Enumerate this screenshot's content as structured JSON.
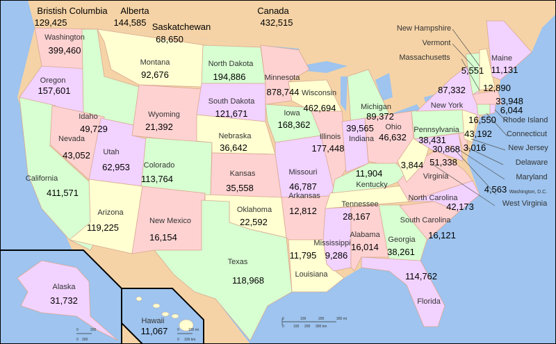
{
  "colors": {
    "ocean": "#9ec4ef",
    "foreign_land": "#f5d3a6",
    "pink": "#ffd2d2",
    "yellow": "#ffffd2",
    "green": "#d8ffd2",
    "purple": "#f2d2ff",
    "lakes": "#9ec4ef"
  },
  "canada": [
    {
      "name": "Bristish Columbia",
      "value": "129,425"
    },
    {
      "name": "Alberta",
      "value": "144,585"
    },
    {
      "name": "Saskatchewan",
      "value": "68,650"
    },
    {
      "name": "Canada",
      "value": "432,515"
    }
  ],
  "states": [
    {
      "name": "Washington",
      "value": "399,460",
      "color": "pink"
    },
    {
      "name": "Oregon",
      "value": "157,601",
      "color": "purple"
    },
    {
      "name": "California",
      "value": "411,571",
      "color": "green"
    },
    {
      "name": "Idaho",
      "value": "49,729",
      "color": "green"
    },
    {
      "name": "Montana",
      "value": "92,676",
      "color": "yellow"
    },
    {
      "name": "Wyoming",
      "value": "21,392",
      "color": "pink"
    },
    {
      "name": "Nevada",
      "value": "43,052",
      "color": "pink"
    },
    {
      "name": "Utah",
      "value": "62,953",
      "color": "purple"
    },
    {
      "name": "Colorado",
      "value": "113,764",
      "color": "green"
    },
    {
      "name": "Arizona",
      "value": "119,225",
      "color": "yellow"
    },
    {
      "name": "New Mexico",
      "value": "16,154",
      "color": "pink"
    },
    {
      "name": "North Dakota",
      "value": "194,886",
      "color": "green"
    },
    {
      "name": "South Dakota",
      "value": "121,671",
      "color": "purple"
    },
    {
      "name": "Nebraska",
      "value": "36,642",
      "color": "yellow"
    },
    {
      "name": "Kansas",
      "value": "35,558",
      "color": "pink"
    },
    {
      "name": "Oklahoma",
      "value": "22,592",
      "color": "yellow"
    },
    {
      "name": "Texas",
      "value": "118,968",
      "color": "green"
    },
    {
      "name": "Minnesota",
      "value": "878,744",
      "color": "pink"
    },
    {
      "name": "Iowa",
      "value": "168,362",
      "color": "green"
    },
    {
      "name": "Missouri",
      "value": "46,787",
      "color": "purple"
    },
    {
      "name": "Arkansas",
      "value": "12,812",
      "color": "pink"
    },
    {
      "name": "Louisiana",
      "value": "11,795",
      "color": "yellow"
    },
    {
      "name": "Wisconsin",
      "value": "462,694",
      "color": "yellow"
    },
    {
      "name": "Illinois",
      "value": "177,448",
      "color": "pink"
    },
    {
      "name": "Michigan",
      "value": "89,372",
      "color": "green"
    },
    {
      "name": "Indiana",
      "value": "39,565",
      "color": "purple"
    },
    {
      "name": "Ohio",
      "value": "46,632",
      "color": "pink"
    },
    {
      "name": "Kentucky",
      "value": "11,904",
      "color": "green"
    },
    {
      "name": "Tennessee",
      "value": "28,167",
      "color": "yellow"
    },
    {
      "name": "Mississippi",
      "value": "9,286",
      "color": "purple"
    },
    {
      "name": "Alabama",
      "value": "16,014",
      "color": "pink"
    },
    {
      "name": "Georgia",
      "value": "38,261",
      "color": "green"
    },
    {
      "name": "Florida",
      "value": "114,762",
      "color": "purple"
    },
    {
      "name": "South Carolina",
      "value": "16,121",
      "color": "pink"
    },
    {
      "name": "North Carolina",
      "value": "42,173",
      "color": "purple"
    },
    {
      "name": "Virginia",
      "value": "51,338",
      "color": "pink"
    },
    {
      "name": "West Virginia",
      "value": "3,844",
      "color": "yellow"
    },
    {
      "name": "Pennsylvania",
      "value": "38,431",
      "color": "green"
    },
    {
      "name": "New York",
      "value": "87,332",
      "color": "purple"
    },
    {
      "name": "Maryland",
      "value": "30,868",
      "color": "purple"
    },
    {
      "name": "Delaware",
      "value": "3,016",
      "color": "pink"
    },
    {
      "name": "New Jersey",
      "value": "43,192",
      "color": "yellow"
    },
    {
      "name": "Connecticut",
      "value": "16,550",
      "color": "green"
    },
    {
      "name": "Rhode Island",
      "value": "6,044",
      "color": "purple"
    },
    {
      "name": "Massachusetts",
      "value": "33,948",
      "color": "pink"
    },
    {
      "name": "Vermont",
      "value": "5,551",
      "color": "green"
    },
    {
      "name": "New Hampshire",
      "value": "12,890",
      "color": "yellow"
    },
    {
      "name": "Maine",
      "value": "11,131",
      "color": "purple"
    },
    {
      "name": "Washington, D.C.",
      "value": "4,563",
      "color": "pink"
    },
    {
      "name": "Alaska",
      "value": "31,732",
      "color": "purple"
    },
    {
      "name": "Hawaii",
      "value": "11,067",
      "color": "yellow"
    }
  ],
  "scale_bars": {
    "main_mi": [
      "0",
      "100",
      "200",
      "300 mi"
    ],
    "main_km": [
      "0",
      "100",
      "200",
      "300 km"
    ],
    "alaska": [
      "0",
      "200",
      "0",
      "200"
    ],
    "hawaii": [
      "0",
      "100 mi",
      "0",
      "100 km"
    ]
  }
}
